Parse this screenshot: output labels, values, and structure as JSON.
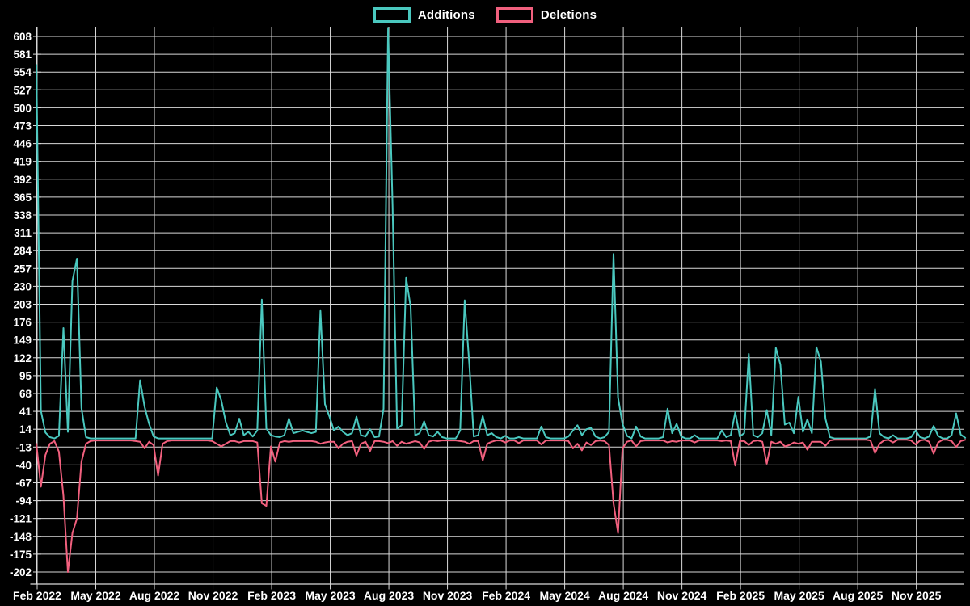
{
  "legend": {
    "additions_label": "Additions",
    "deletions_label": "Deletions"
  },
  "colors": {
    "background": "#000000",
    "grid": "#d9d9d9",
    "axis_text": "#ffffff",
    "additions": "#4ac8bf",
    "deletions": "#f1607e"
  },
  "chart_data": {
    "type": "line",
    "title": "",
    "xlabel": "",
    "ylabel": "",
    "grid": true,
    "legend_position": "top-center",
    "x_unit": "week",
    "x_tick_labels": [
      "Feb 2022",
      "May 2022",
      "Aug 2022",
      "Nov 2022",
      "Feb 2023",
      "May 2023",
      "Aug 2023",
      "Nov 2023",
      "Feb 2024",
      "May 2024",
      "Aug 2024",
      "Nov 2024",
      "Feb 2025",
      "May 2025",
      "Aug 2025",
      "Nov 2025"
    ],
    "weeks_per_x_tick": 13,
    "y_ticks": [
      608,
      581,
      554,
      527,
      500,
      473,
      446,
      419,
      392,
      365,
      338,
      311,
      284,
      257,
      230,
      203,
      176,
      149,
      122,
      95,
      68,
      41,
      14,
      -13,
      -40,
      -67,
      -94,
      -121,
      -148,
      -175,
      -202
    ],
    "ylim_drawn": [
      -220,
      622
    ],
    "series": [
      {
        "name": "Additions",
        "color": "#4ac8bf",
        "values": [
          565,
          42,
          9,
          2,
          0,
          4,
          167,
          10,
          238,
          272,
          46,
          2,
          0,
          0,
          0,
          0,
          0,
          0,
          0,
          0,
          0,
          0,
          0,
          88,
          48,
          22,
          3,
          0,
          0,
          0,
          0,
          0,
          0,
          0,
          0,
          0,
          0,
          0,
          0,
          0,
          77,
          58,
          25,
          5,
          8,
          30,
          5,
          10,
          3,
          12,
          210,
          15,
          5,
          3,
          2,
          5,
          30,
          8,
          10,
          12,
          10,
          8,
          10,
          193,
          52,
          33,
          12,
          18,
          10,
          5,
          8,
          33,
          5,
          3,
          14,
          2,
          3,
          45,
          620,
          350,
          15,
          20,
          243,
          199,
          5,
          8,
          26,
          5,
          3,
          10,
          2,
          0,
          0,
          0,
          12,
          209,
          114,
          3,
          5,
          34,
          5,
          8,
          2,
          0,
          4,
          0,
          0,
          2,
          0,
          0,
          0,
          0,
          18,
          2,
          0,
          0,
          0,
          0,
          3,
          12,
          20,
          5,
          14,
          16,
          3,
          0,
          2,
          10,
          279,
          62,
          22,
          4,
          0,
          18,
          3,
          0,
          0,
          0,
          0,
          2,
          45,
          8,
          22,
          3,
          0,
          0,
          5,
          0,
          0,
          0,
          0,
          0,
          12,
          2,
          5,
          40,
          3,
          8,
          128,
          5,
          2,
          8,
          43,
          5,
          137,
          112,
          21,
          24,
          8,
          63,
          10,
          29,
          8,
          138,
          116,
          30,
          2,
          0,
          0,
          0,
          0,
          0,
          0,
          0,
          0,
          3,
          75,
          8,
          2,
          0,
          5,
          0,
          0,
          0,
          2,
          12,
          2,
          0,
          3,
          19,
          4,
          0,
          0,
          5,
          38,
          6,
          1
        ]
      },
      {
        "name": "Deletions",
        "color": "#f1607e",
        "values": [
          -8,
          -73,
          -25,
          -8,
          -4,
          -20,
          -87,
          -202,
          -143,
          -121,
          -35,
          -8,
          -4,
          -3,
          -3,
          -3,
          -3,
          -3,
          -3,
          -3,
          -3,
          -3,
          -4,
          -5,
          -15,
          -5,
          -10,
          -56,
          -8,
          -4,
          -3,
          -3,
          -3,
          -3,
          -3,
          -3,
          -3,
          -3,
          -3,
          -4,
          -8,
          -12,
          -8,
          -4,
          -4,
          -6,
          -4,
          -4,
          -4,
          -6,
          -98,
          -102,
          -12,
          -35,
          -6,
          -4,
          -5,
          -4,
          -4,
          -4,
          -4,
          -4,
          -5,
          -8,
          -6,
          -5,
          -5,
          -15,
          -8,
          -5,
          -4,
          -26,
          -8,
          -5,
          -19,
          -4,
          -4,
          -5,
          -7,
          -4,
          -11,
          -5,
          -8,
          -6,
          -4,
          -6,
          -16,
          -5,
          -3,
          -4,
          -3,
          -3,
          -3,
          -3,
          -4,
          -5,
          -8,
          -4,
          -4,
          -33,
          -8,
          -5,
          -3,
          -3,
          -6,
          -3,
          -3,
          -7,
          -3,
          -3,
          -3,
          -3,
          -9,
          -3,
          -3,
          -3,
          -3,
          -3,
          -4,
          -15,
          -8,
          -18,
          -6,
          -10,
          -4,
          -3,
          -4,
          -10,
          -98,
          -143,
          -15,
          -5,
          -3,
          -12,
          -4,
          -3,
          -3,
          -3,
          -3,
          -3,
          -6,
          -4,
          -5,
          -3,
          -3,
          -3,
          -6,
          -3,
          -3,
          -3,
          -3,
          -3,
          -4,
          -3,
          -4,
          -41,
          -4,
          -4,
          -10,
          -4,
          -3,
          -5,
          -38,
          -5,
          -8,
          -5,
          -12,
          -10,
          -6,
          -8,
          -6,
          -17,
          -5,
          -5,
          -5,
          -11,
          -3,
          -2,
          -2,
          -2,
          -2,
          -2,
          -2,
          -2,
          -2,
          -3,
          -22,
          -8,
          -3,
          -2,
          -6,
          -2,
          -2,
          -2,
          -3,
          -9,
          -3,
          -2,
          -5,
          -23,
          -6,
          -2,
          -2,
          -4,
          -13,
          -4,
          -2
        ]
      }
    ]
  }
}
